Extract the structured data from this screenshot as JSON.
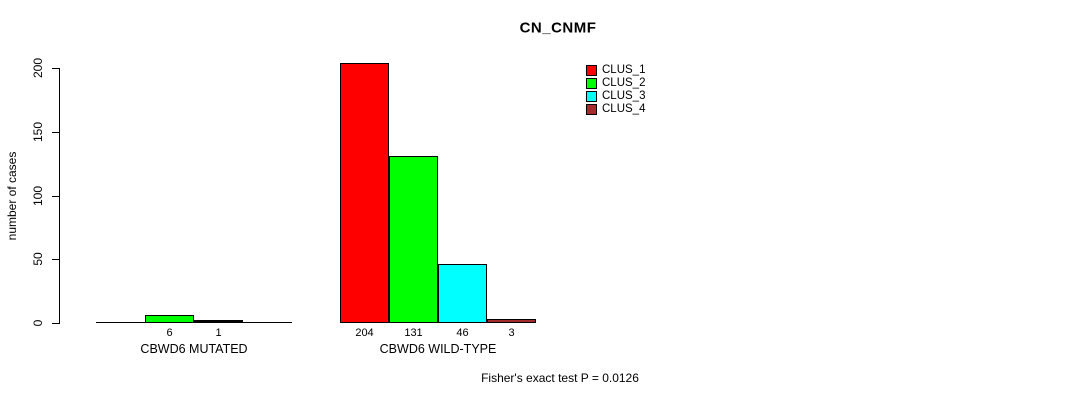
{
  "title": "CN_CNMF",
  "y_axis": {
    "label": "number of cases"
  },
  "caption": "Fisher's exact test P = 0.0126",
  "legend": [
    {
      "label": "CLUS_1",
      "color": "#FF0000"
    },
    {
      "label": "CLUS_2",
      "color": "#00FF00"
    },
    {
      "label": "CLUS_3",
      "color": "#00FFFF"
    },
    {
      "label": "CLUS_4",
      "color": "#A52A2A"
    }
  ],
  "chart_data": {
    "type": "bar",
    "title": "CN_CNMF",
    "ylabel": "number of cases",
    "ylim": [
      0,
      200
    ],
    "yticks": [
      0,
      50,
      100,
      150,
      200
    ],
    "grid": false,
    "legend_position": "top-right",
    "series": [
      "CLUS_1",
      "CLUS_2",
      "CLUS_3",
      "CLUS_4"
    ],
    "series_colors": [
      "#FF0000",
      "#00FF00",
      "#00FFFF",
      "#A52A2A"
    ],
    "groups": [
      {
        "category": "CBWD6 MUTATED",
        "values": [
          0,
          6,
          1,
          0
        ],
        "bar_labels": [
          "",
          "6",
          "1",
          ""
        ]
      },
      {
        "category": "CBWD6 WILD-TYPE",
        "values": [
          204,
          131,
          46,
          3
        ],
        "bar_labels": [
          "204",
          "131",
          "46",
          "3"
        ]
      }
    ],
    "annotation": "Fisher's exact test P = 0.0126"
  }
}
